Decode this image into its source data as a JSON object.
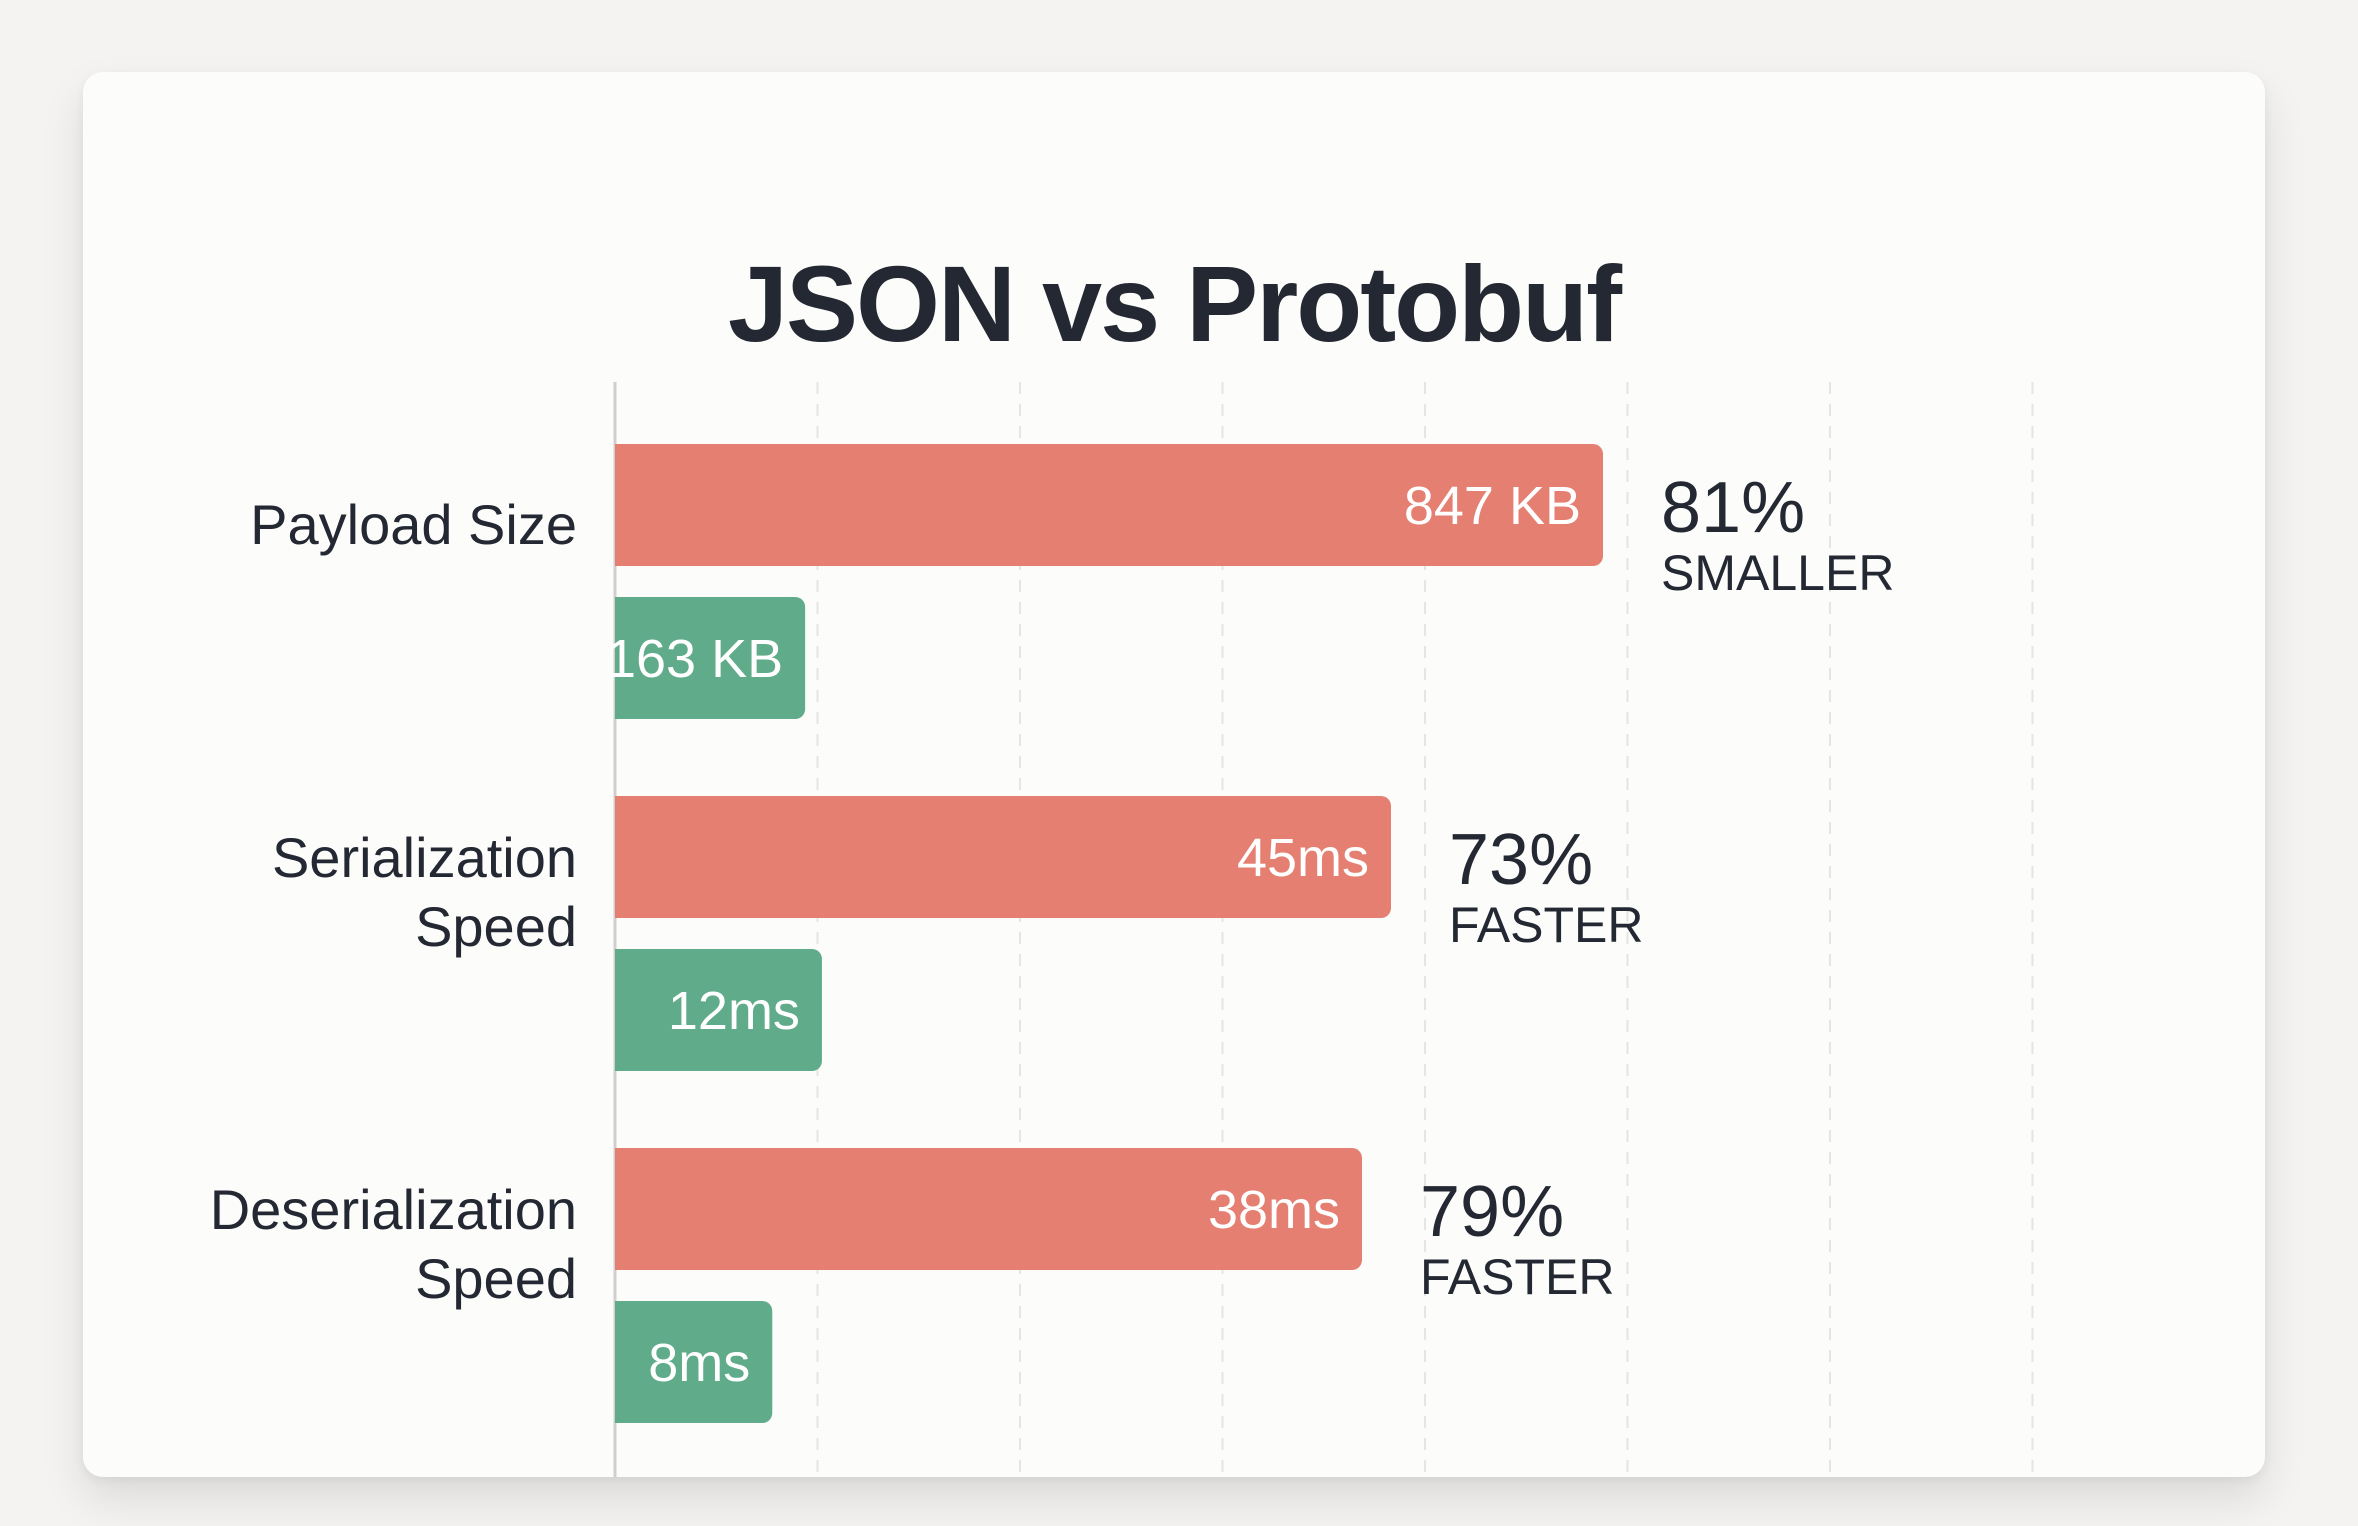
{
  "title": "JSON vs Protobuf",
  "colors": {
    "page_bg": "#f4f3f1",
    "card_bg": "#fcfcfa",
    "json_bar": "#e47f71",
    "protobuf_bar": "#5fab8a",
    "text": "#232833",
    "grid": "#e5e5e3",
    "axis": "#cfcfcd"
  },
  "chart_data": {
    "type": "bar",
    "orientation": "horizontal",
    "title": "JSON vs Protobuf",
    "grid": true,
    "categories": [
      {
        "label_lines": [
          "Payload Size"
        ],
        "bars": [
          {
            "value": 847,
            "unit": "KB",
            "text": "847 KB",
            "color": "#e47f71"
          },
          {
            "value": 163,
            "unit": "KB",
            "text": "163 KB",
            "color": "#5fab8a"
          }
        ],
        "comparison": {
          "value": "81%",
          "word": "SMALLER"
        }
      },
      {
        "label_lines": [
          "Serialization",
          "Speed"
        ],
        "bars": [
          {
            "value": 45,
            "unit": "ms",
            "text": "45ms",
            "color": "#e47f71"
          },
          {
            "value": 12,
            "unit": "ms",
            "text": "12ms",
            "color": "#5fab8a"
          }
        ],
        "comparison": {
          "value": "73%",
          "word": "FASTER"
        }
      },
      {
        "label_lines": [
          "Deserialization",
          "Speed"
        ],
        "bars": [
          {
            "value": 38,
            "unit": "ms",
            "text": "38ms",
            "color": "#e47f71"
          },
          {
            "value": 8,
            "unit": "ms",
            "text": "8ms",
            "color": "#5fab8a"
          }
        ],
        "comparison": {
          "value": "79%",
          "word": "FASTER"
        }
      }
    ]
  }
}
